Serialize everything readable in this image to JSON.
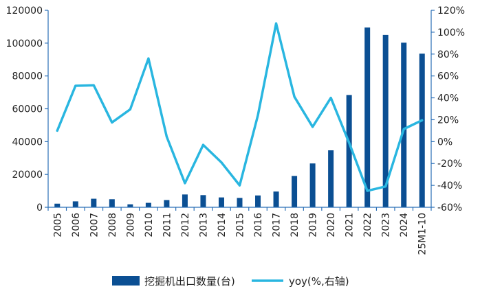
{
  "chart_data": {
    "type": "bar+line",
    "categories": [
      "2005",
      "2006",
      "2007",
      "2008",
      "2009",
      "2010",
      "2011",
      "2012",
      "2013",
      "2014",
      "2015",
      "2016",
      "2017",
      "2018",
      "2019",
      "2020",
      "2021",
      "2022",
      "2023",
      "2024",
      "25M1-10"
    ],
    "series": [
      {
        "name": "挖掘机出口数量(台)",
        "type": "bar",
        "axis": "left",
        "color": "#0b4f93",
        "values": [
          2200,
          3600,
          5200,
          4900,
          1800,
          2700,
          4400,
          7800,
          7400,
          6000,
          5700,
          7200,
          9600,
          19100,
          26700,
          34700,
          68400,
          109500,
          105000,
          100300,
          93600
        ]
      },
      {
        "name": "yoy(%,右轴)",
        "type": "line",
        "axis": "right",
        "color": "#29b6e0",
        "values": [
          10,
          51,
          51.5,
          17.5,
          29.5,
          76,
          4.5,
          -38,
          -3,
          -19,
          -40,
          24,
          108,
          41,
          13.5,
          40,
          -1,
          -45,
          -41,
          11.5,
          19.5
        ]
      }
    ],
    "left_axis": {
      "ylim": [
        0,
        120000
      ],
      "ticks": [
        0,
        20000,
        40000,
        60000,
        80000,
        100000,
        120000
      ]
    },
    "right_axis": {
      "ylim": [
        -60,
        120
      ],
      "ticks": [
        "-60%",
        "-40%",
        "-20%",
        "0%",
        "20%",
        "40%",
        "60%",
        "80%",
        "100%",
        "120%"
      ]
    },
    "grid": false,
    "legend_position": "bottom"
  }
}
